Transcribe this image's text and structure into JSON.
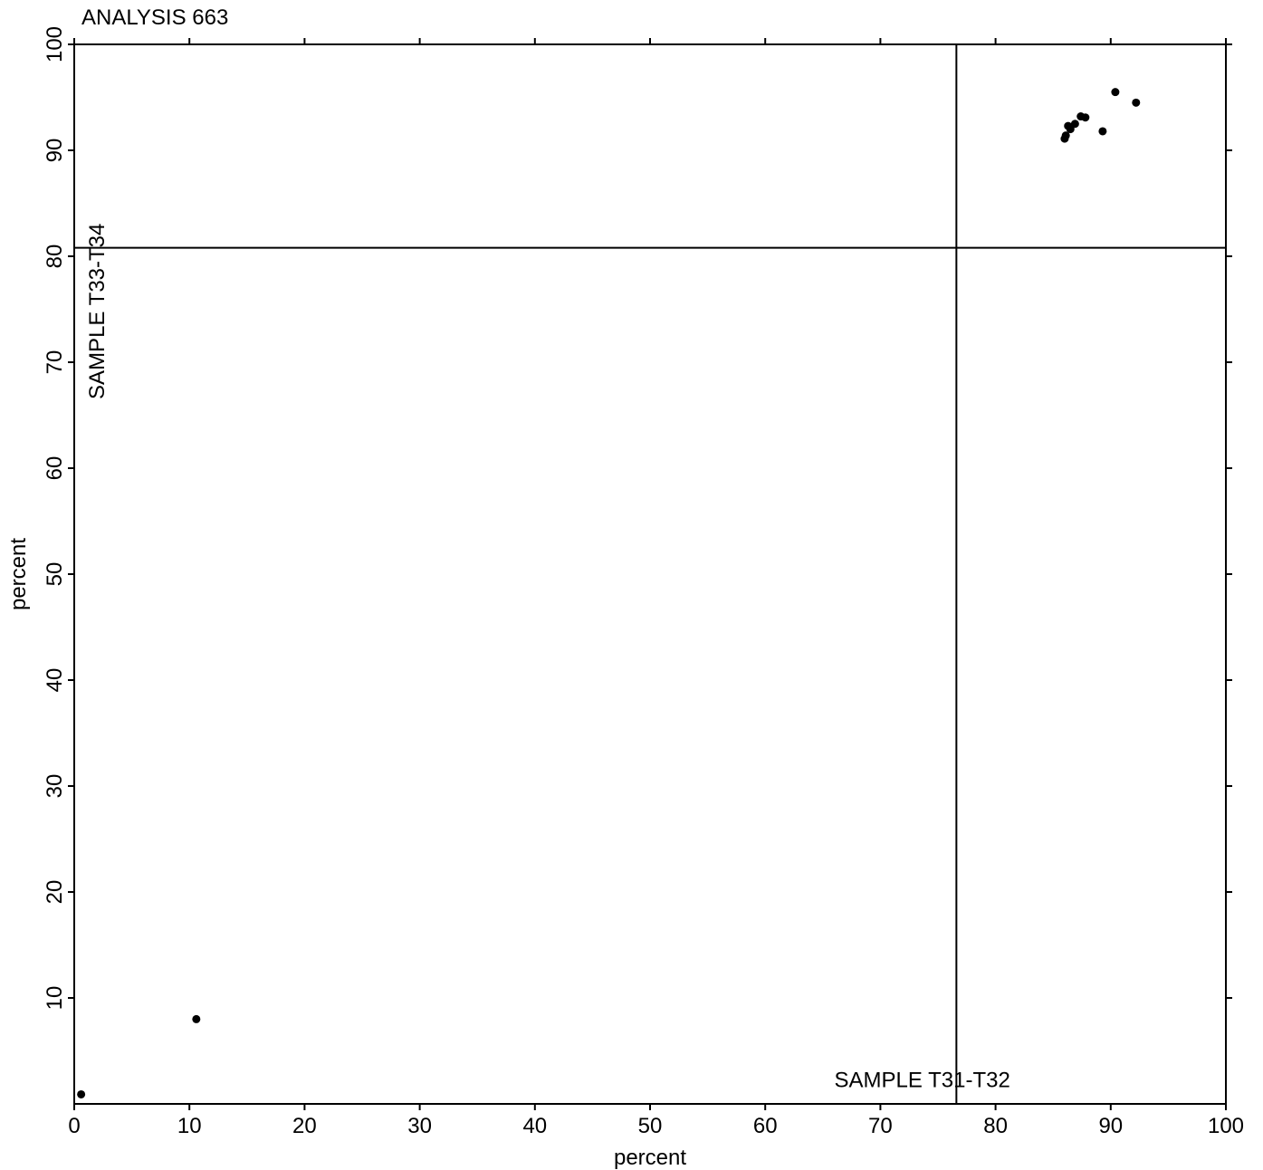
{
  "chart_data": {
    "type": "scatter",
    "title": "ANALYSIS 663",
    "xlabel": "percent",
    "ylabel": "percent",
    "xlim": [
      0,
      100
    ],
    "ylim": [
      0,
      100
    ],
    "xticks": [
      0,
      10,
      20,
      30,
      40,
      50,
      60,
      70,
      80,
      90,
      100
    ],
    "yticks": [
      10,
      20,
      30,
      40,
      50,
      60,
      70,
      80,
      90,
      100
    ],
    "grid": false,
    "reference_lines": [
      {
        "orientation": "vertical",
        "value": 76.6
      },
      {
        "orientation": "horizontal",
        "value": 80.8
      }
    ],
    "annotations": [
      {
        "text": "SAMPLE T31-T32",
        "x": 66,
        "y": 1.6,
        "rotation": 0
      },
      {
        "text": "SAMPLE T33-T34",
        "x": 1.8,
        "y": 66.5,
        "rotation": -90
      }
    ],
    "series": [
      {
        "points": [
          {
            "x": 0.6,
            "y": 0.9
          },
          {
            "x": 10.6,
            "y": 8.0
          },
          {
            "x": 86.0,
            "y": 91.1
          },
          {
            "x": 86.1,
            "y": 91.4
          },
          {
            "x": 86.3,
            "y": 92.3
          },
          {
            "x": 86.5,
            "y": 92.0
          },
          {
            "x": 86.9,
            "y": 92.5
          },
          {
            "x": 87.4,
            "y": 93.2
          },
          {
            "x": 87.8,
            "y": 93.1
          },
          {
            "x": 89.3,
            "y": 91.8
          },
          {
            "x": 90.4,
            "y": 95.5
          },
          {
            "x": 92.2,
            "y": 94.5
          }
        ]
      }
    ]
  }
}
